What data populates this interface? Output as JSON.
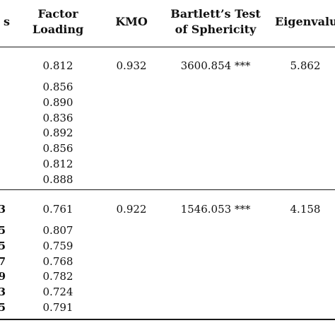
{
  "headers": {
    "items_clip": "s",
    "factor_loading_1": "Factor",
    "factor_loading_2": "Loading",
    "kmo": "KMO",
    "bartlett_1": "Bartlett’s Test",
    "bartlett_2": "of Sphericity",
    "eigenvalue_clip": "Eigenvalu"
  },
  "group1": {
    "kmo": "0.932",
    "bartlett": "3600.854 ***",
    "eigenvalue": "5.862",
    "loadings": [
      "0.812",
      "0.856",
      "0.890",
      "0.836",
      "0.892",
      "0.856",
      "0.812",
      "0.888"
    ]
  },
  "group2": {
    "kmo": "0.922",
    "bartlett": "1546.053 ***",
    "eigenvalue": "4.158",
    "items_clip": [
      "3",
      "5",
      "5",
      "7",
      "9",
      "3",
      "5"
    ],
    "loadings": [
      "0.761",
      "0.807",
      "0.759",
      "0.768",
      "0.782",
      "0.724",
      "0.791"
    ]
  }
}
